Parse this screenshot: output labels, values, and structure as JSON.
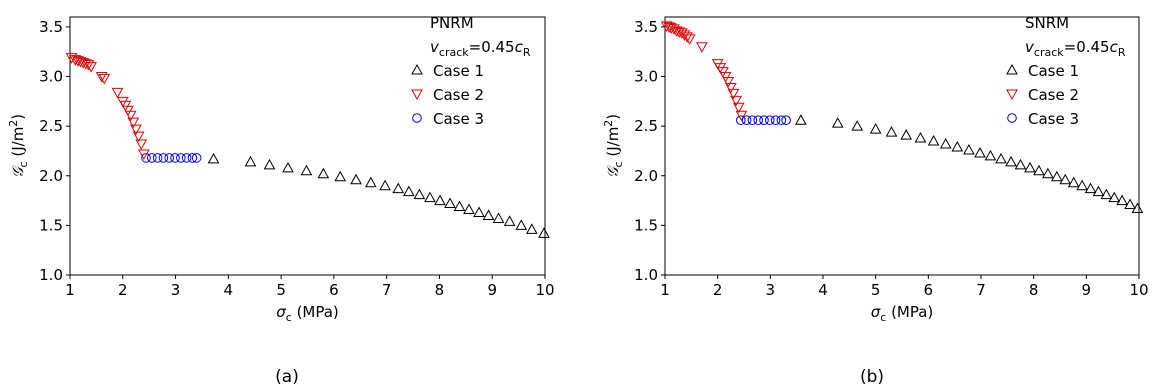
{
  "chart_data": [
    {
      "type": "scatter",
      "panel_label": "(a)",
      "annotation": {
        "model": "PNRM",
        "velocity_prefix": "v",
        "velocity_sub": "crack",
        "velocity_mid": "=0.45",
        "velocity_c": "c",
        "velocity_csub": "R"
      },
      "xlabel": {
        "symbol": "σ",
        "sub": "c",
        "unit": " (MPa)"
      },
      "ylabel": {
        "symbol": "𝒢",
        "sub": "c",
        "unit_prefix": " (J/m",
        "unit_sup": "2",
        "unit_suffix": ")"
      },
      "xlim": [
        1,
        10
      ],
      "ylim": [
        1.0,
        3.6
      ],
      "xticks": [
        "1",
        "2",
        "3",
        "4",
        "5",
        "6",
        "7",
        "8",
        "9",
        "10"
      ],
      "yticks": [
        "1.0",
        "1.5",
        "2.0",
        "2.5",
        "3.0",
        "3.5"
      ],
      "legend_position": "upper-right",
      "series": [
        {
          "name": "Case 1",
          "marker": "triangle-up",
          "color": "#000000",
          "x": [
            3.72,
            4.42,
            4.78,
            5.13,
            5.48,
            5.8,
            6.12,
            6.42,
            6.7,
            6.97,
            7.22,
            7.42,
            7.62,
            7.82,
            8.01,
            8.2,
            8.38,
            8.56,
            8.75,
            8.93,
            9.12,
            9.33,
            9.55,
            9.75,
            9.98
          ],
          "y": [
            2.17,
            2.14,
            2.11,
            2.08,
            2.05,
            2.02,
            1.99,
            1.96,
            1.93,
            1.9,
            1.87,
            1.84,
            1.81,
            1.78,
            1.75,
            1.72,
            1.69,
            1.66,
            1.63,
            1.6,
            1.57,
            1.54,
            1.5,
            1.46,
            1.42
          ]
        },
        {
          "name": "Case 2",
          "marker": "triangle-down",
          "color": "#e00000",
          "x": [
            1.03,
            1.1,
            1.15,
            1.2,
            1.25,
            1.3,
            1.35,
            1.4,
            1.6,
            1.65,
            1.9,
            2.0,
            2.05,
            2.1,
            2.15,
            2.2,
            2.25,
            2.3,
            2.35,
            2.4
          ],
          "y": [
            3.19,
            3.17,
            3.16,
            3.15,
            3.14,
            3.13,
            3.12,
            3.1,
            3.0,
            2.98,
            2.84,
            2.75,
            2.71,
            2.66,
            2.61,
            2.54,
            2.47,
            2.4,
            2.32,
            2.22
          ]
        },
        {
          "name": "Case 3",
          "marker": "circle",
          "color": "#0000ee",
          "x": [
            2.44,
            2.55,
            2.66,
            2.77,
            2.88,
            2.99,
            3.1,
            3.21,
            3.32,
            3.4
          ],
          "y": [
            2.18,
            2.18,
            2.18,
            2.18,
            2.18,
            2.18,
            2.18,
            2.18,
            2.18,
            2.18
          ]
        }
      ]
    },
    {
      "type": "scatter",
      "panel_label": "(b)",
      "annotation": {
        "model": "SNRM",
        "velocity_prefix": "v",
        "velocity_sub": "crack",
        "velocity_mid": "=0.45",
        "velocity_c": "c",
        "velocity_csub": "R"
      },
      "xlabel": {
        "symbol": "σ",
        "sub": "c",
        "unit": " (MPa)"
      },
      "ylabel": {
        "symbol": "𝒢",
        "sub": "c",
        "unit_prefix": " (J/m",
        "unit_sup": "2",
        "unit_suffix": ")"
      },
      "xlim": [
        1,
        10
      ],
      "ylim": [
        1.0,
        3.6
      ],
      "xticks": [
        "1",
        "2",
        "3",
        "4",
        "5",
        "6",
        "7",
        "8",
        "9",
        "10"
      ],
      "yticks": [
        "1.0",
        "1.5",
        "2.0",
        "2.5",
        "3.0",
        "3.5"
      ],
      "legend_position": "upper-right",
      "series": [
        {
          "name": "Case 1",
          "marker": "triangle-up",
          "color": "#000000",
          "x": [
            3.58,
            4.28,
            4.65,
            5.0,
            5.3,
            5.58,
            5.85,
            6.1,
            6.33,
            6.55,
            6.77,
            6.98,
            7.18,
            7.38,
            7.57,
            7.75,
            7.93,
            8.1,
            8.27,
            8.44,
            8.6,
            8.76,
            8.92,
            9.08,
            9.23,
            9.38,
            9.53,
            9.68,
            9.83,
            9.97
          ],
          "y": [
            2.56,
            2.53,
            2.5,
            2.47,
            2.44,
            2.41,
            2.38,
            2.35,
            2.32,
            2.29,
            2.26,
            2.23,
            2.2,
            2.17,
            2.14,
            2.11,
            2.08,
            2.05,
            2.02,
            1.99,
            1.96,
            1.93,
            1.9,
            1.87,
            1.84,
            1.81,
            1.78,
            1.75,
            1.71,
            1.67
          ]
        },
        {
          "name": "Case 2",
          "marker": "triangle-down",
          "color": "#e00000",
          "x": [
            1.03,
            1.08,
            1.12,
            1.17,
            1.22,
            1.27,
            1.32,
            1.37,
            1.42,
            1.47,
            1.7,
            2.0,
            2.05,
            2.1,
            2.15,
            2.2,
            2.25,
            2.3,
            2.35,
            2.4,
            2.45
          ],
          "y": [
            3.51,
            3.5,
            3.49,
            3.48,
            3.46,
            3.45,
            3.44,
            3.42,
            3.4,
            3.38,
            3.3,
            3.13,
            3.09,
            3.05,
            3.0,
            2.95,
            2.89,
            2.83,
            2.76,
            2.69,
            2.61
          ]
        },
        {
          "name": "Case 3",
          "marker": "circle",
          "color": "#0000ee",
          "x": [
            2.44,
            2.55,
            2.66,
            2.77,
            2.88,
            2.99,
            3.1,
            3.21,
            3.3
          ],
          "y": [
            2.56,
            2.56,
            2.56,
            2.56,
            2.56,
            2.56,
            2.56,
            2.56,
            2.56
          ]
        }
      ]
    }
  ]
}
